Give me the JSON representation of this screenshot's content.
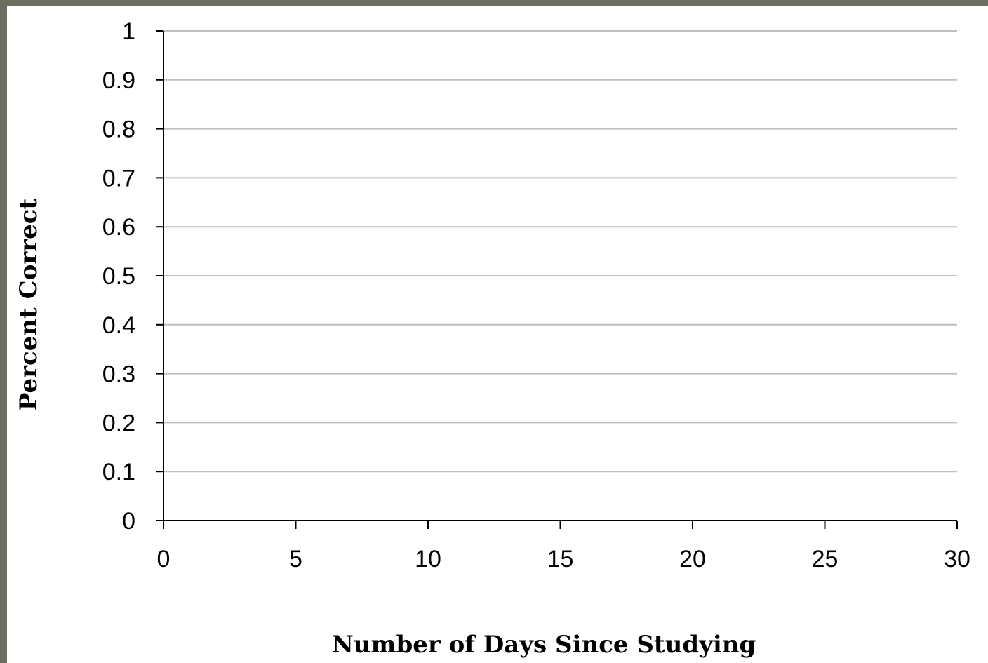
{
  "chart_data": {
    "type": "scatter",
    "title": "",
    "xlabel": "Number of Days Since Studying",
    "ylabel": "Percent Correct",
    "xlim": [
      0,
      30
    ],
    "ylim": [
      0,
      1
    ],
    "x_ticks": [
      0,
      5,
      10,
      15,
      20,
      25,
      30
    ],
    "y_ticks": [
      0,
      0.1,
      0.2,
      0.3,
      0.4,
      0.5,
      0.6,
      0.7,
      0.8,
      0.9,
      1
    ],
    "x_tick_labels": [
      "0",
      "5",
      "10",
      "15",
      "20",
      "25",
      "30"
    ],
    "y_tick_labels": [
      "0",
      "0.1",
      "0.2",
      "0.3",
      "0.4",
      "0.5",
      "0.6",
      "0.7",
      "0.8",
      "0.9",
      "1"
    ],
    "grid": "horizontal",
    "series": []
  },
  "colors": {
    "background_border": "#6b6d5e",
    "plot_background": "#ffffff",
    "gridline": "#bfbfbf",
    "axis": "#000000"
  }
}
